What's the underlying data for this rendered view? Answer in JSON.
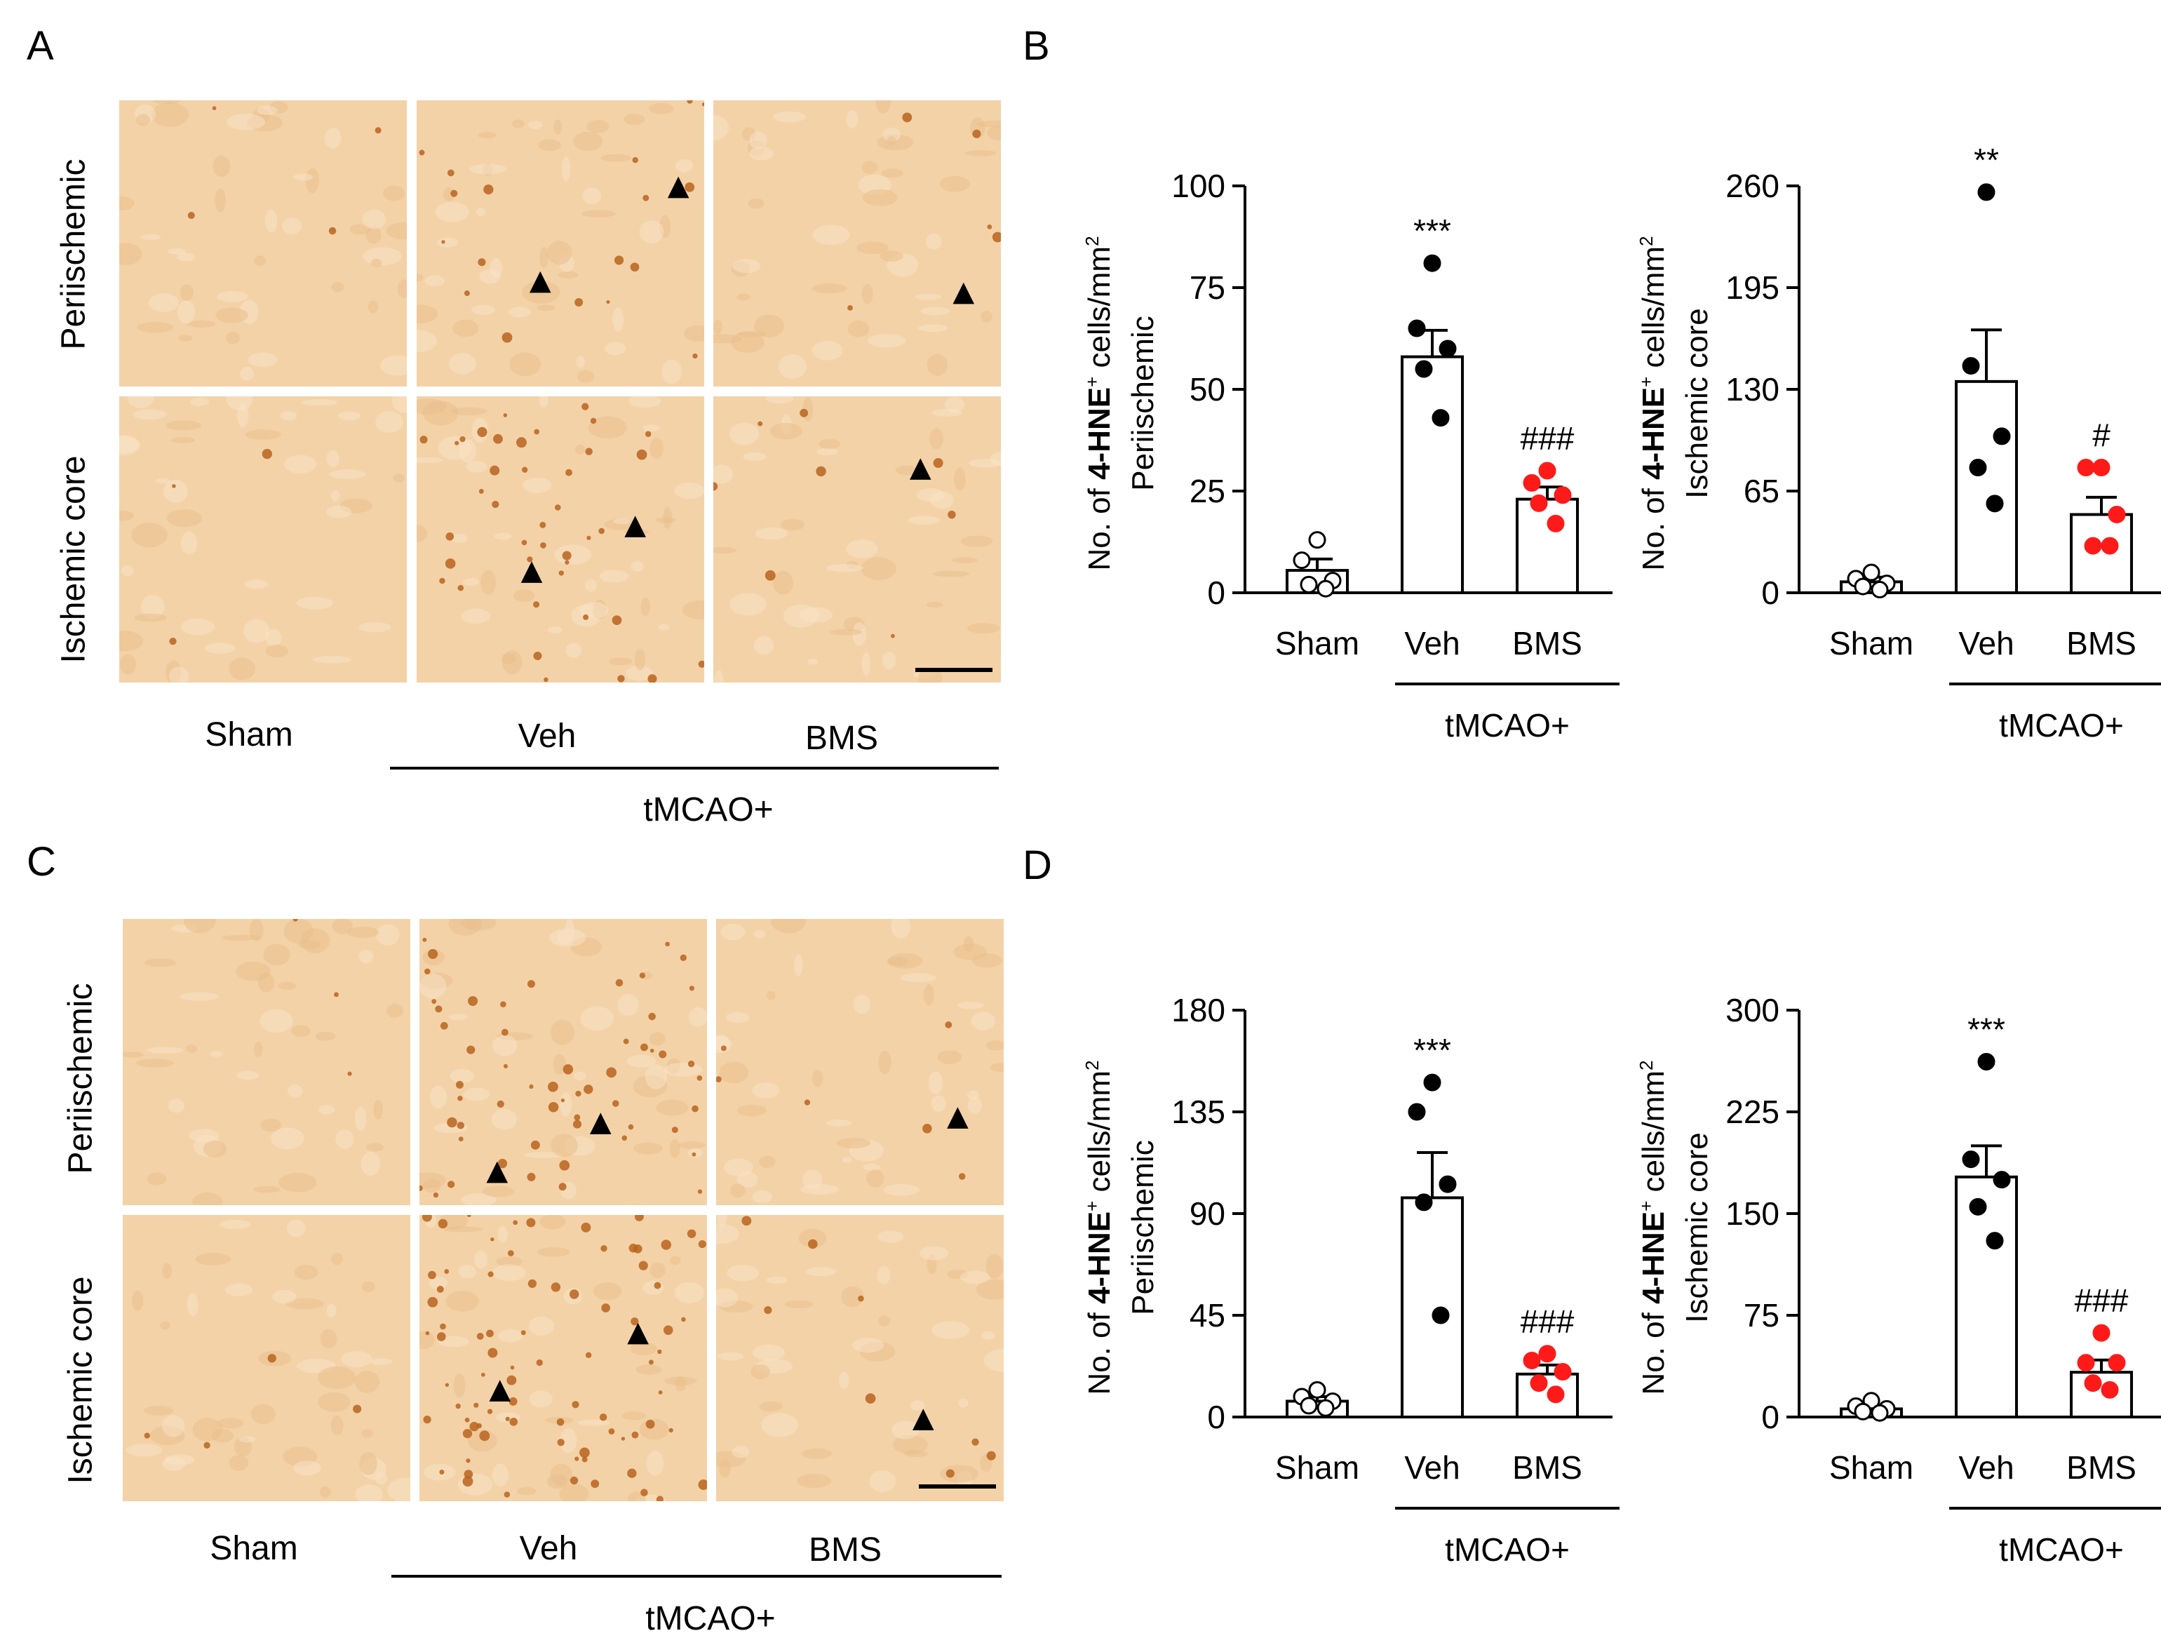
{
  "figure": {
    "panels": {
      "A": {
        "letter": "A"
      },
      "B": {
        "letter": "B"
      },
      "C": {
        "letter": "C"
      },
      "D": {
        "letter": "D"
      }
    },
    "micrograph": {
      "row_labels": [
        "Periischemic",
        "Ischemic core"
      ],
      "col_labels": [
        "Sham",
        "Veh",
        "BMS"
      ],
      "group_label": "tMCAO+",
      "marker_glyph": "▲",
      "tissue_color": "#f3d2a8",
      "stain_color": "#b8641f"
    }
  },
  "chart_data": [
    {
      "id": "B-left",
      "type": "bar",
      "panel": "B",
      "categories": [
        "Sham",
        "Veh",
        "BMS"
      ],
      "values": [
        5.5,
        58,
        23
      ],
      "errors": [
        2.8,
        6.5,
        3
      ],
      "points": [
        [
          13,
          8,
          3,
          2,
          1
        ],
        [
          81,
          65,
          60,
          55,
          43
        ],
        [
          30,
          27,
          24,
          22,
          17
        ]
      ],
      "point_colors": [
        "#ffffff",
        "#000000",
        "#ff1a1a"
      ],
      "significance": [
        "",
        "***",
        "###"
      ],
      "ylim": [
        0,
        100
      ],
      "yticks": [
        0,
        25,
        50,
        75,
        100
      ],
      "ylabel_prefix": "No. of ",
      "ylabel_bold": "4-HNE",
      "ylabel_sup": "+",
      "ylabel_suffix": " cells/mm",
      "ylabel_sup2": "2",
      "ylabel_line2": "Periischemic",
      "group_label": "tMCAO+"
    },
    {
      "id": "B-right",
      "type": "bar",
      "panel": "B",
      "categories": [
        "Sham",
        "Veh",
        "BMS"
      ],
      "values": [
        7,
        135,
        50
      ],
      "errors": [
        3,
        33,
        11
      ],
      "points": [
        [
          13,
          9,
          6,
          4,
          2
        ],
        [
          256,
          145,
          100,
          80,
          57
        ],
        [
          80,
          80,
          50,
          30,
          30
        ]
      ],
      "point_colors": [
        "#ffffff",
        "#000000",
        "#ff1a1a"
      ],
      "significance": [
        "",
        "**",
        "#"
      ],
      "ylim": [
        0,
        260
      ],
      "yticks": [
        0,
        65,
        130,
        195,
        260
      ],
      "ylabel_prefix": "No. of ",
      "ylabel_bold": "4-HNE",
      "ylabel_sup": "+",
      "ylabel_suffix": " cells/mm",
      "ylabel_sup2": "2",
      "ylabel_line2": "Ischemic core",
      "group_label": "tMCAO+"
    },
    {
      "id": "D-left",
      "type": "bar",
      "panel": "D",
      "categories": [
        "Sham",
        "Veh",
        "BMS"
      ],
      "values": [
        7,
        97,
        19
      ],
      "errors": [
        2,
        20,
        4
      ],
      "points": [
        [
          12,
          9,
          7,
          5,
          4
        ],
        [
          148,
          135,
          103,
          95,
          45
        ],
        [
          28,
          25,
          20,
          15,
          10
        ]
      ],
      "point_colors": [
        "#ffffff",
        "#000000",
        "#ff1a1a"
      ],
      "significance": [
        "",
        "***",
        "###"
      ],
      "ylim": [
        0,
        180
      ],
      "yticks": [
        0,
        45,
        90,
        135,
        180
      ],
      "ylabel_prefix": "No. of ",
      "ylabel_bold": "4-HNE",
      "ylabel_sup": "+",
      "ylabel_suffix": " cells/mm",
      "ylabel_sup2": "2",
      "ylabel_line2": "Periischemic",
      "group_label": "tMCAO+"
    },
    {
      "id": "D-right",
      "type": "bar",
      "panel": "D",
      "categories": [
        "Sham",
        "Veh",
        "BMS"
      ],
      "values": [
        6,
        177,
        33
      ],
      "errors": [
        2,
        23,
        9
      ],
      "points": [
        [
          12,
          8,
          6,
          4,
          3
        ],
        [
          262,
          190,
          175,
          155,
          130
        ],
        [
          62,
          40,
          40,
          25,
          20
        ]
      ],
      "point_colors": [
        "#ffffff",
        "#000000",
        "#ff1a1a"
      ],
      "significance": [
        "",
        "***",
        "###"
      ],
      "ylim": [
        0,
        300
      ],
      "yticks": [
        0,
        75,
        150,
        225,
        300
      ],
      "ylabel_prefix": "No. of ",
      "ylabel_bold": "4-HNE",
      "ylabel_sup": "+",
      "ylabel_suffix": " cells/mm",
      "ylabel_sup2": "2",
      "ylabel_line2": "Ischemic core",
      "group_label": "tMCAO+"
    }
  ]
}
